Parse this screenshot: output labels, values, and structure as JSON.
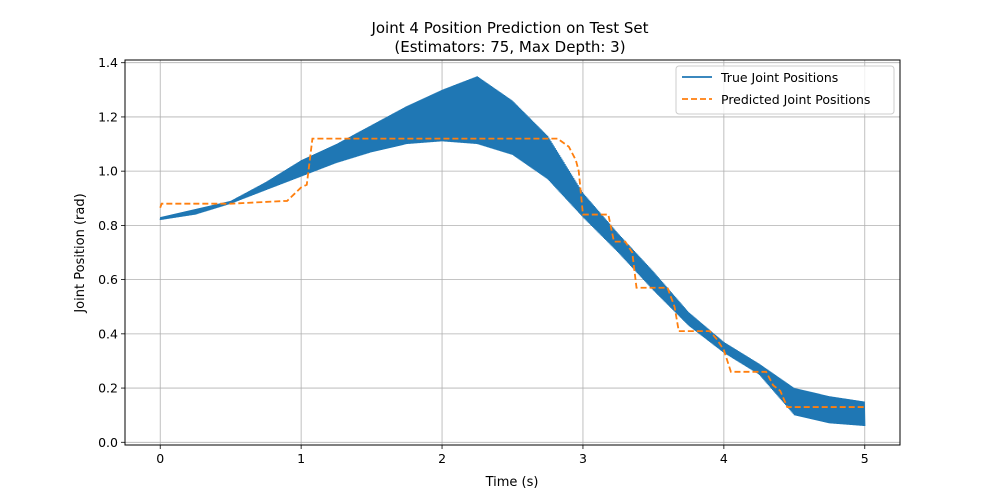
{
  "chart_data": {
    "type": "line",
    "title_line1": "Joint 4 Position Prediction on Test Set",
    "title_line2": "(Estimators: 75, Max Depth: 3)",
    "xlabel": "Time (s)",
    "ylabel": "Joint Position (rad)",
    "xlim": [
      -0.25,
      5.25
    ],
    "ylim": [
      -0.01,
      1.41
    ],
    "xticks": [
      0,
      1,
      2,
      3,
      4,
      5
    ],
    "xtick_labels": [
      "0",
      "1",
      "2",
      "3",
      "4",
      "5"
    ],
    "yticks": [
      0.0,
      0.2,
      0.4,
      0.6,
      0.8,
      1.0,
      1.2,
      1.4
    ],
    "ytick_labels": [
      "0.0",
      "0.2",
      "0.4",
      "0.6",
      "0.8",
      "1.0",
      "1.2",
      "1.4"
    ],
    "grid": true,
    "legend_position": "top-right",
    "series": [
      {
        "name": "True Joint Positions",
        "color": "#1f77b4",
        "style": "solid",
        "envelope_x": [
          0,
          0.25,
          0.5,
          0.75,
          1.0,
          1.25,
          1.5,
          1.75,
          2.0,
          2.25,
          2.5,
          2.75,
          3.0,
          3.25,
          3.5,
          3.75,
          4.0,
          4.25,
          4.5,
          4.75,
          5.0
        ],
        "envelope_lower": [
          0.82,
          0.84,
          0.88,
          0.93,
          0.98,
          1.03,
          1.07,
          1.1,
          1.11,
          1.1,
          1.06,
          0.97,
          0.83,
          0.7,
          0.56,
          0.43,
          0.33,
          0.25,
          0.1,
          0.07,
          0.06
        ],
        "envelope_upper": [
          0.83,
          0.86,
          0.89,
          0.96,
          1.04,
          1.1,
          1.17,
          1.24,
          1.3,
          1.35,
          1.26,
          1.13,
          0.92,
          0.77,
          0.63,
          0.48,
          0.37,
          0.29,
          0.2,
          0.17,
          0.15
        ]
      },
      {
        "name": "Predicted Joint Positions",
        "color": "#ff7f0e",
        "style": "dashed",
        "x": [
          0,
          0.01,
          0.5,
          0.88,
          0.9,
          1.0,
          1.04,
          1.08,
          1.5,
          2.0,
          2.5,
          2.82,
          2.9,
          2.95,
          2.97,
          3.0,
          3.18,
          3.22,
          3.3,
          3.35,
          3.38,
          3.6,
          3.65,
          3.68,
          3.9,
          3.95,
          4.0,
          4.05,
          4.3,
          4.35,
          4.4,
          4.45,
          4.5,
          5.0
        ],
        "y": [
          0.865,
          0.88,
          0.88,
          0.89,
          0.89,
          0.94,
          0.95,
          1.12,
          1.12,
          1.12,
          1.12,
          1.12,
          1.09,
          1.04,
          1.0,
          0.84,
          0.84,
          0.74,
          0.74,
          0.7,
          0.57,
          0.57,
          0.5,
          0.41,
          0.41,
          0.38,
          0.34,
          0.26,
          0.26,
          0.21,
          0.19,
          0.13,
          0.13,
          0.13
        ]
      }
    ]
  }
}
